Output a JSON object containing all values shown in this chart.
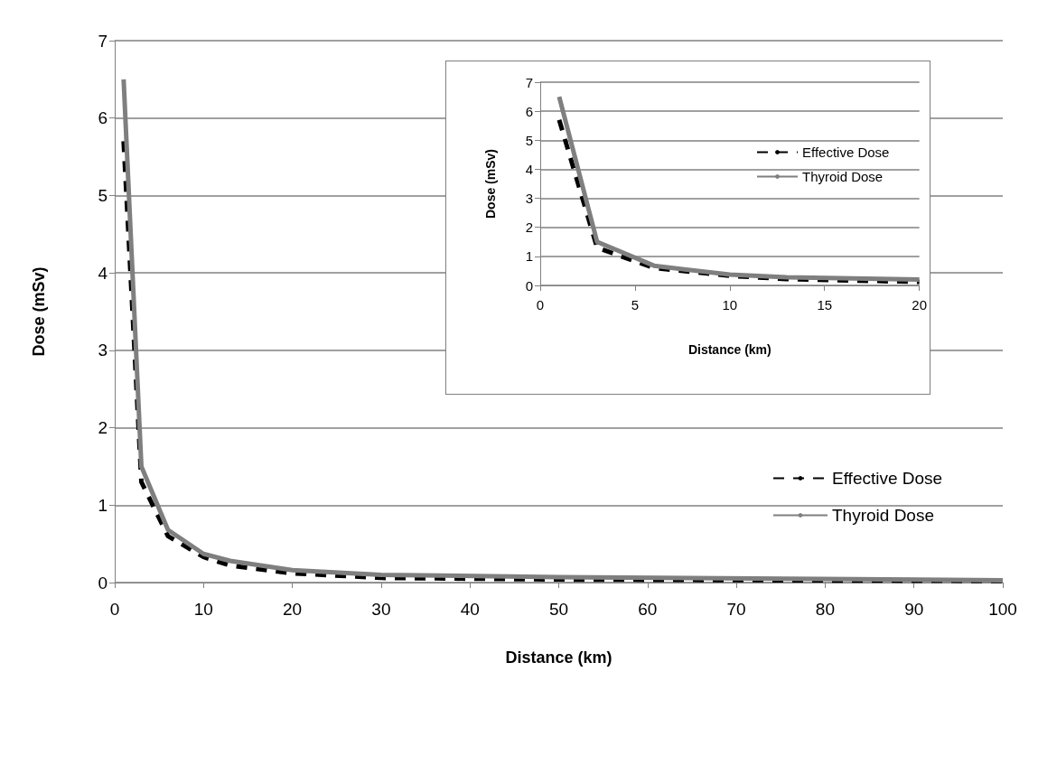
{
  "chart_data": [
    {
      "type": "line",
      "xlabel": "Distance (km)",
      "ylabel": "Dose (mSv)",
      "xlim": [
        0,
        100
      ],
      "xticks": [
        0,
        10,
        20,
        30,
        40,
        50,
        60,
        70,
        80,
        90,
        100
      ],
      "ylim": [
        0,
        7
      ],
      "yticks": [
        0,
        1,
        2,
        3,
        4,
        5,
        6,
        7
      ],
      "grid": "y",
      "legend": "right",
      "marker": "none",
      "series": [
        {
          "name": "Effective Dose",
          "color": "#000000",
          "line_style": "dashed",
          "x": [
            1,
            3,
            6,
            10,
            13,
            20,
            30,
            50,
            100
          ],
          "values": [
            5.7,
            1.3,
            0.6,
            0.33,
            0.22,
            0.12,
            0.06,
            0.04,
            0.02
          ]
        },
        {
          "name": "Thyroid Dose",
          "color": "#7f7f7f",
          "line_style": "solid",
          "x": [
            1,
            3,
            6,
            10,
            13,
            20,
            30,
            50,
            100
          ],
          "values": [
            6.5,
            1.5,
            0.68,
            0.37,
            0.28,
            0.16,
            0.1,
            0.07,
            0.03
          ]
        }
      ]
    },
    {
      "type": "line",
      "xlabel": "Distance (km)",
      "ylabel": "Dose (mSv)",
      "xlim": [
        0,
        20
      ],
      "xticks": [
        0,
        5,
        10,
        15,
        20
      ],
      "ylim": [
        0,
        7
      ],
      "yticks": [
        0,
        1,
        2,
        3,
        4,
        5,
        6,
        7
      ],
      "grid": "y",
      "legend": "right",
      "marker": "none",
      "series": [
        {
          "name": "Effective Dose",
          "color": "#000000",
          "line_style": "dashed",
          "x": [
            1,
            3,
            6,
            10,
            13,
            20
          ],
          "values": [
            5.7,
            1.3,
            0.6,
            0.33,
            0.22,
            0.12
          ]
        },
        {
          "name": "Thyroid Dose",
          "color": "#7f7f7f",
          "line_style": "solid",
          "x": [
            1,
            3,
            6,
            10,
            13,
            20
          ],
          "values": [
            6.5,
            1.5,
            0.68,
            0.37,
            0.28,
            0.2
          ]
        }
      ]
    }
  ]
}
